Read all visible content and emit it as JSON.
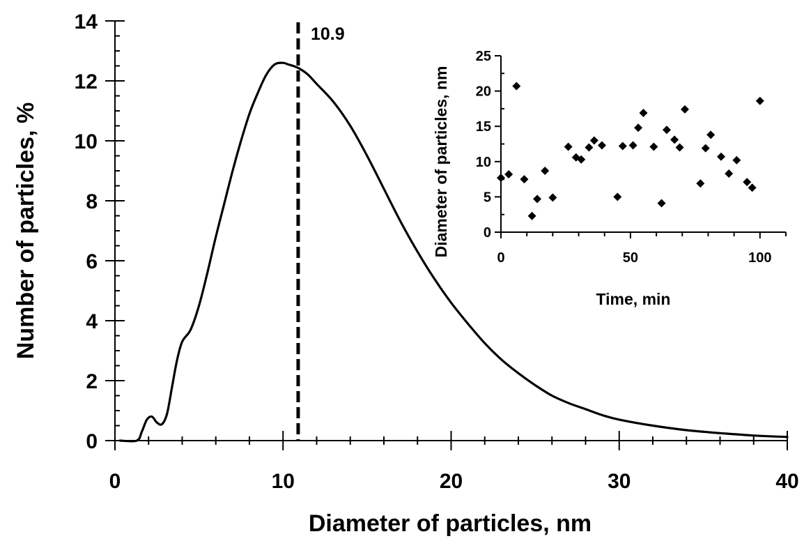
{
  "chart_data": [
    {
      "type": "line",
      "xlabel": "Diameter of particles, nm",
      "ylabel": "Number of particles, %",
      "xlim": [
        0,
        40
      ],
      "ylim": [
        0,
        14
      ],
      "x_ticks": [
        0,
        10,
        20,
        30,
        40
      ],
      "y_ticks": [
        0,
        2,
        4,
        6,
        8,
        10,
        12,
        14
      ],
      "x_minor_step": 2,
      "y_minor_step": 0.5,
      "grid": false,
      "series": [
        {
          "x": [
            0.3,
            1.3,
            1.6,
            1.9,
            2.2,
            2.5,
            2.8,
            3.1,
            3.4,
            3.7,
            4.0,
            4.5,
            5.0,
            5.5,
            6.0,
            6.5,
            7.0,
            7.5,
            8.0,
            8.5,
            9.0,
            9.5,
            10.0,
            10.3,
            10.6,
            11.0,
            11.5,
            12.0,
            13.0,
            14.0,
            15.0,
            16.0,
            17.0,
            18.0,
            19.0,
            20.0,
            21.0,
            22.0,
            23.0,
            24.0,
            25.0,
            26.0,
            27.0,
            28.0,
            29.0,
            30.0,
            32.0,
            34.0,
            36.0,
            38.0,
            40.0
          ],
          "y": [
            0,
            0,
            0.3,
            0.7,
            0.8,
            0.6,
            0.55,
            0.9,
            1.8,
            2.7,
            3.3,
            3.7,
            4.5,
            5.6,
            6.8,
            7.9,
            9.0,
            10.0,
            10.9,
            11.6,
            12.2,
            12.55,
            12.6,
            12.55,
            12.5,
            12.4,
            12.2,
            11.9,
            11.3,
            10.5,
            9.5,
            8.4,
            7.3,
            6.3,
            5.4,
            4.6,
            3.9,
            3.25,
            2.7,
            2.25,
            1.85,
            1.5,
            1.25,
            1.05,
            0.85,
            0.7,
            0.5,
            0.35,
            0.25,
            0.17,
            0.12
          ]
        }
      ],
      "reference_line": {
        "x": 10.9,
        "style": "dashed",
        "label": "10.9"
      }
    },
    {
      "type": "scatter",
      "xlabel": "Time, min",
      "ylabel": "Diameter of particles, nm",
      "xlim": [
        0,
        110
      ],
      "ylim": [
        0,
        25
      ],
      "x_ticks": [
        0,
        50,
        100
      ],
      "y_ticks": [
        0,
        5,
        10,
        15,
        20,
        25
      ],
      "x_minor_step": 10,
      "y_minor_step": 2.5,
      "grid": false,
      "marker": "diamond",
      "series": [
        {
          "x": [
            0,
            3,
            6,
            9,
            12,
            14,
            17,
            20,
            26,
            29,
            31,
            34,
            36,
            39,
            45,
            47,
            51,
            53,
            55,
            59,
            62,
            64,
            67,
            69,
            71,
            77,
            79,
            81,
            85,
            88,
            91,
            95,
            97,
            100
          ],
          "y": [
            7.7,
            8.2,
            20.7,
            7.5,
            2.3,
            4.7,
            8.7,
            4.9,
            12.1,
            10.6,
            10.3,
            12.0,
            13.0,
            12.3,
            5.0,
            12.2,
            12.3,
            14.8,
            16.9,
            12.1,
            4.1,
            14.5,
            13.1,
            12.0,
            17.4,
            6.9,
            11.9,
            13.8,
            10.7,
            8.3,
            10.2,
            7.1,
            6.3,
            18.6
          ]
        }
      ]
    }
  ]
}
